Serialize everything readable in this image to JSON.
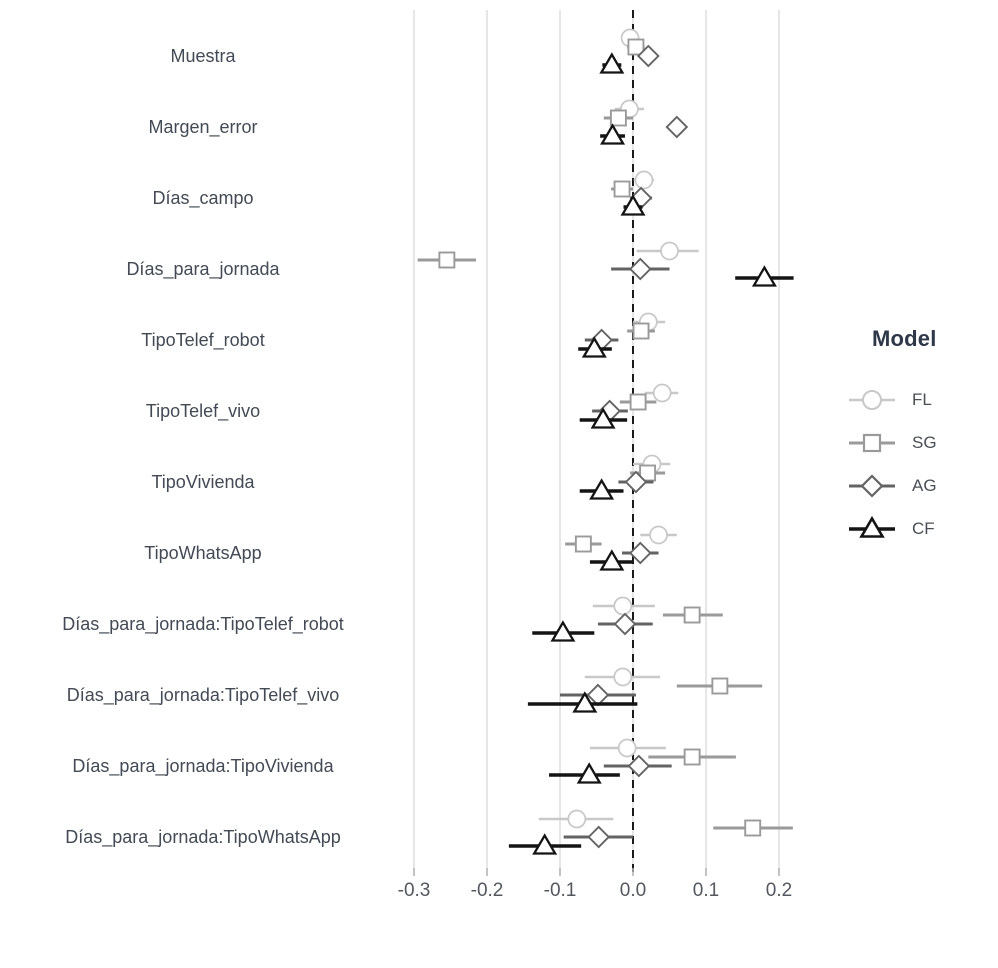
{
  "chart_data": {
    "type": "scatter",
    "subtype": "forest-dot-whisker",
    "title": "",
    "xlabel": "",
    "ylabel": "",
    "x_ticks": [
      -0.3,
      -0.2,
      -0.1,
      0.0,
      0.1,
      0.2
    ],
    "x_tick_labels": [
      "-0.3",
      "-0.2",
      "-0.1",
      "0.0",
      "0.1",
      "0.2"
    ],
    "xlim": [
      -0.33,
      0.24
    ],
    "grid": "vertical-only",
    "zero_line": {
      "value": 0.0,
      "style": "dashed",
      "color": "#1a1a1a"
    },
    "categories": [
      "Muestra",
      "Margen_error",
      "Días_campo",
      "Días_para_jornada",
      "TipoTelef_robot",
      "TipoTelef_vivo",
      "TipoVivienda",
      "TipoWhatsApp",
      "Días_para_jornada:TipoTelef_robot",
      "Días_para_jornada:TipoTelef_vivo",
      "Días_para_jornada:TipoVivienda",
      "Días_para_jornada:TipoWhatsApp"
    ],
    "series": [
      {
        "name": "FL",
        "marker": "circle",
        "color": "#c8c8c8",
        "estimates": [
          -0.004,
          -0.005,
          0.015,
          0.05,
          0.021,
          0.04,
          0.026,
          0.035,
          -0.014,
          -0.014,
          -0.008,
          -0.077
        ],
        "ci_low": [
          -0.016,
          -0.025,
          0.001,
          0.005,
          0.0,
          0.016,
          0.0,
          0.01,
          -0.055,
          -0.066,
          -0.059,
          -0.129
        ],
        "ci_high": [
          0.008,
          0.015,
          0.029,
          0.09,
          0.044,
          0.062,
          0.051,
          0.06,
          0.03,
          0.037,
          0.045,
          -0.027
        ]
      },
      {
        "name": "SG",
        "marker": "square",
        "color": "#9a9a9a",
        "estimates": [
          0.004,
          -0.02,
          -0.015,
          -0.255,
          0.011,
          0.007,
          0.02,
          -0.068,
          0.081,
          0.119,
          0.081,
          0.164
        ],
        "ci_low": [
          -0.008,
          -0.04,
          -0.03,
          -0.295,
          -0.008,
          -0.018,
          -0.004,
          -0.093,
          0.041,
          0.06,
          0.021,
          0.11
        ],
        "ci_high": [
          0.016,
          0.0,
          0.0,
          -0.215,
          0.03,
          0.032,
          0.044,
          -0.043,
          0.123,
          0.177,
          0.141,
          0.219
        ]
      },
      {
        "name": "AG",
        "marker": "diamond",
        "color": "#636363",
        "estimates": [
          0.021,
          0.06,
          0.011,
          0.01,
          -0.043,
          -0.032,
          0.004,
          0.01,
          -0.011,
          -0.048,
          0.008,
          -0.047
        ],
        "ci_low": [
          0.009,
          0.048,
          -0.004,
          -0.03,
          -0.066,
          -0.056,
          -0.02,
          -0.015,
          -0.048,
          -0.1,
          -0.04,
          -0.095
        ],
        "ci_high": [
          0.033,
          0.072,
          0.026,
          0.05,
          -0.02,
          -0.007,
          0.028,
          0.035,
          0.027,
          0.004,
          0.053,
          0.0
        ]
      },
      {
        "name": "CF",
        "marker": "triangle",
        "color": "#141414",
        "estimates": [
          -0.029,
          -0.028,
          0.0,
          0.18,
          -0.053,
          -0.041,
          -0.043,
          -0.029,
          -0.096,
          -0.066,
          -0.06,
          -0.121
        ],
        "ci_low": [
          -0.042,
          -0.045,
          -0.013,
          0.14,
          -0.075,
          -0.073,
          -0.073,
          -0.059,
          -0.138,
          -0.144,
          -0.115,
          -0.17
        ],
        "ci_high": [
          -0.016,
          -0.011,
          0.013,
          0.22,
          -0.029,
          -0.008,
          -0.013,
          0.0,
          -0.053,
          0.006,
          -0.018,
          -0.071
        ]
      }
    ],
    "legend": {
      "title": "Model",
      "position": "right",
      "entries": [
        "FL",
        "SG",
        "AG",
        "CF"
      ]
    },
    "colors": {
      "grid": "#dcdcdc",
      "tick": "#b4b4b4",
      "axis_text": "#53575e",
      "category_text": "#434a55",
      "marker_fill": "#ffffff"
    }
  }
}
